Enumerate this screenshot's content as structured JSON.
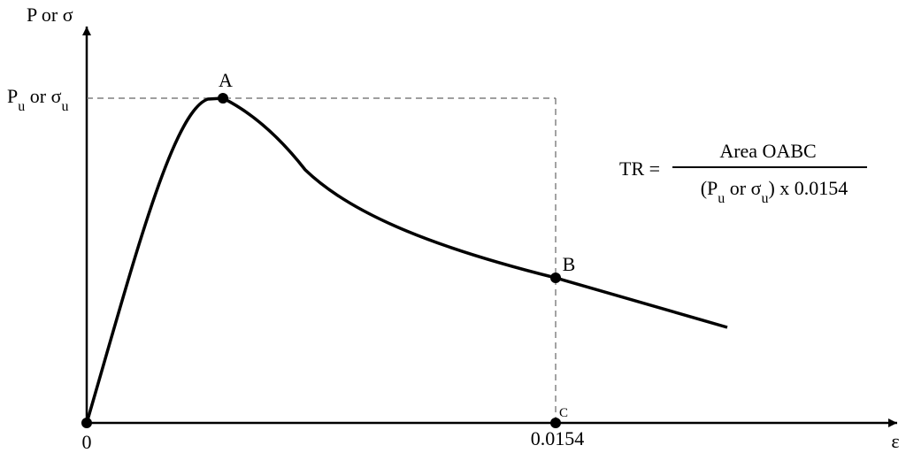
{
  "axes": {
    "y_label": "P or σ",
    "x_label": "ε",
    "origin_label": "0",
    "x_mark_label": "0.0154",
    "y_mark_label": [
      {
        "text": "P"
      },
      {
        "text": "u",
        "sub": true
      },
      {
        "text": " or σ"
      },
      {
        "text": "u",
        "sub": true
      }
    ]
  },
  "points": [
    {
      "label": "A"
    },
    {
      "label": "B"
    },
    {
      "label": "C"
    }
  ],
  "formula": {
    "lhs": "TR =",
    "numerator": "Area OABC",
    "denominator": [
      {
        "text": "(P"
      },
      {
        "text": "u",
        "sub": true
      },
      {
        "text": " or σ"
      },
      {
        "text": "u",
        "sub": true
      },
      {
        "text": ") x 0.0154"
      }
    ]
  }
}
